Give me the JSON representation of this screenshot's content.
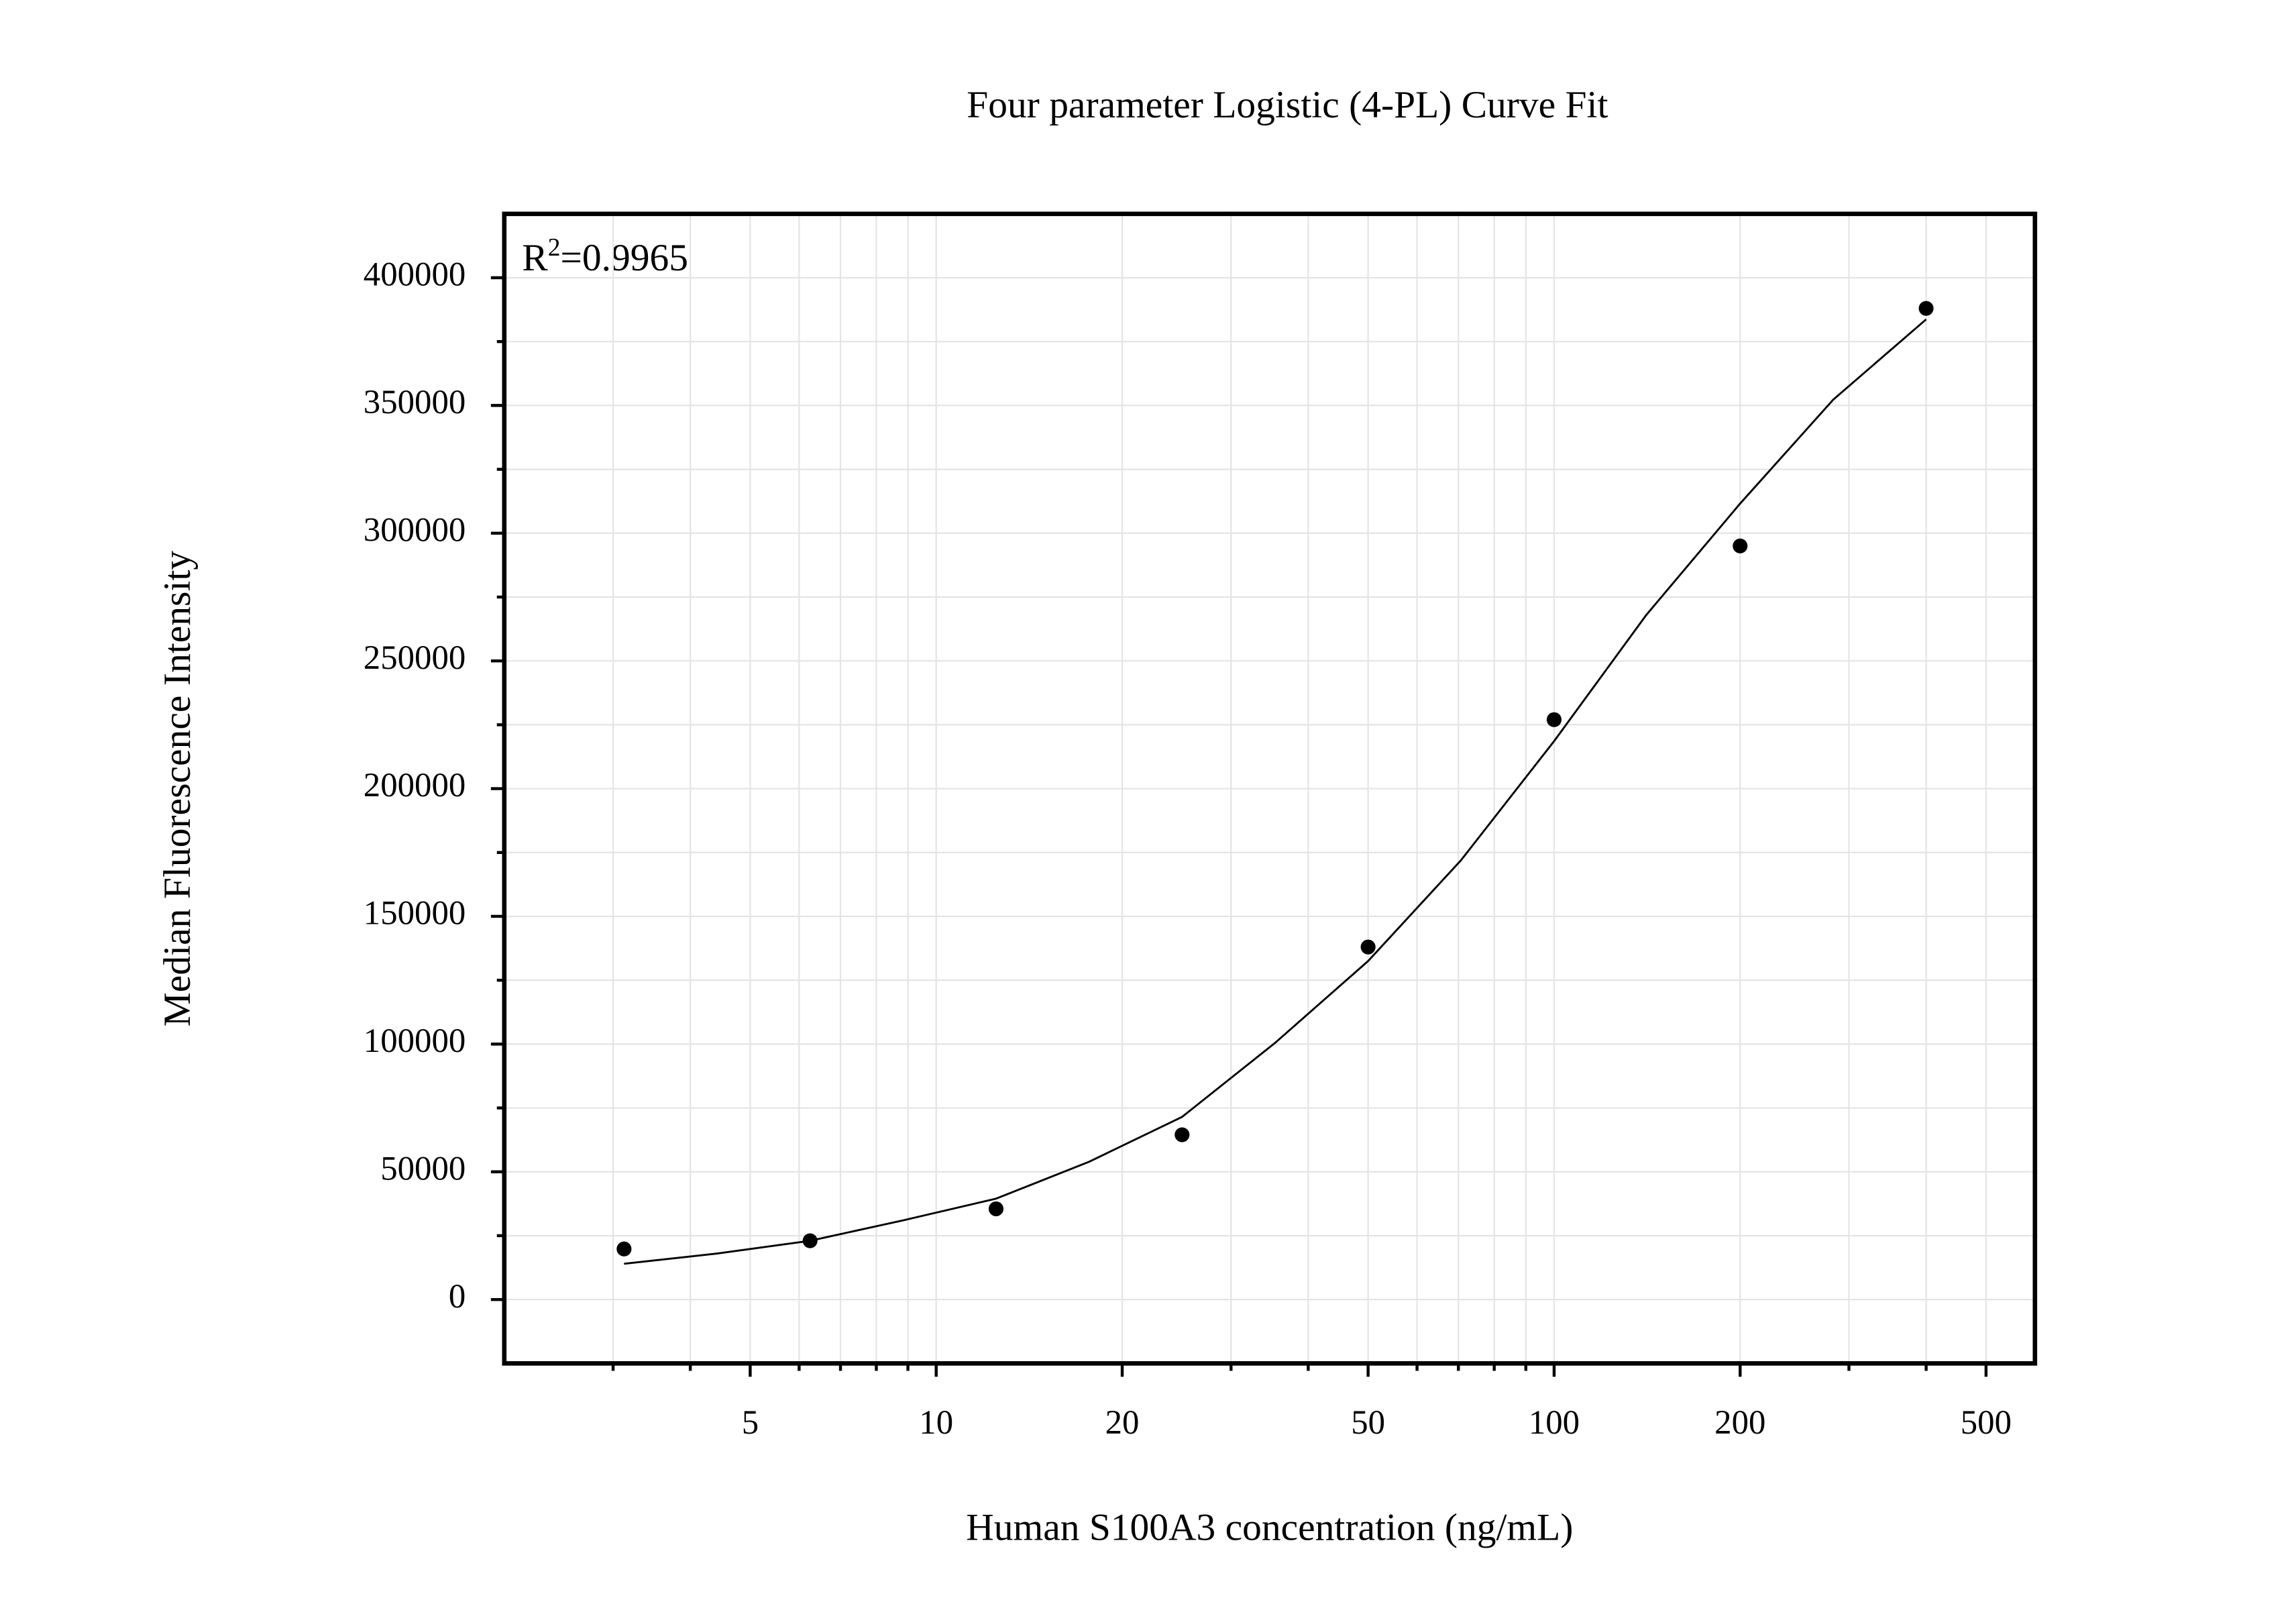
{
  "chart_data": {
    "type": "scatter",
    "title": "Four parameter Logistic (4-PL) Curve Fit",
    "x_label": "Human S100A3 concentration (ng/mL)",
    "y_label": "Median Fluorescence Intensity",
    "annotation": [
      "R",
      "2",
      "=0.9965"
    ],
    "x": [
      3.125,
      6.25,
      12.5,
      25,
      50,
      100,
      200,
      400
    ],
    "values": [
      19800,
      23000,
      35500,
      64500,
      138000,
      227000,
      295000,
      388000
    ],
    "color": "#000000",
    "fit": {
      "x": [
        3.125,
        4.42,
        6.25,
        8.84,
        12.5,
        17.7,
        25,
        35.4,
        50,
        70.7,
        100,
        141,
        200,
        283,
        400
      ],
      "values": [
        14000,
        18000,
        23000,
        31000,
        39500,
        54000,
        71500,
        100600,
        132500,
        172000,
        218600,
        268000,
        311600,
        352300,
        383700
      ],
      "color": "#000000"
    },
    "xscale": "log",
    "xlim": [
      2,
      600
    ],
    "ylim": [
      -25000,
      425000
    ],
    "xticks": [
      5,
      10,
      20,
      50,
      100,
      200,
      500
    ],
    "xminorticks": [
      3,
      4,
      6,
      7,
      8,
      9,
      30,
      40,
      60,
      70,
      80,
      90,
      300,
      400
    ],
    "yticks": [
      0,
      50000,
      100000,
      150000,
      200000,
      250000,
      300000,
      350000,
      400000
    ],
    "yminorticks": [
      25000,
      75000,
      125000,
      175000,
      225000,
      275000,
      325000,
      375000
    ],
    "grid": true
  }
}
